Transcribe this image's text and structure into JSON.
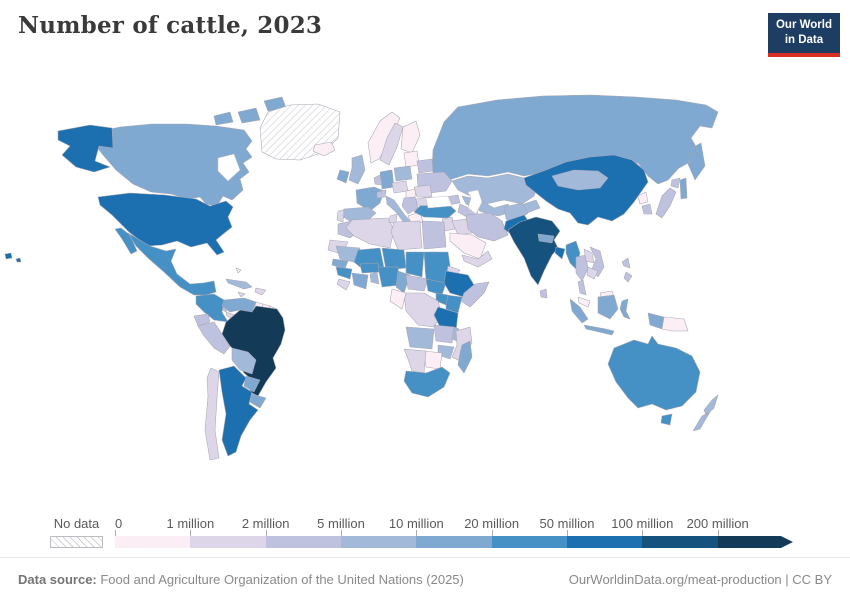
{
  "header": {
    "title": "Number of cattle, 2023",
    "logo": {
      "line1": "Our World",
      "line2": "in Data"
    },
    "logo_bg": "#1d3d63",
    "logo_accent": "#d93025"
  },
  "legend": {
    "no_data_label": "No data"
  },
  "footer": {
    "datasource_label": "Data source:",
    "datasource_text": " Food and Agriculture Organization of the United Nations (2025)",
    "link_text": "OurWorldinData.org/meat-production | CC BY"
  },
  "chart_data": {
    "type": "choropleth",
    "title": "Number of cattle, 2023",
    "year": 2023,
    "unit": "cattle",
    "legend_bins": [
      {
        "label": "0",
        "range": "0–1 million",
        "color": "#fbeff5"
      },
      {
        "label": "1 million",
        "range": "1–2 million",
        "color": "#dcd6e8"
      },
      {
        "label": "2 million",
        "range": "2–5 million",
        "color": "#bfc2df"
      },
      {
        "label": "5 million",
        "range": "5–10 million",
        "color": "#a2b9da"
      },
      {
        "label": "10 million",
        "range": "10–20 million",
        "color": "#7fa9d1"
      },
      {
        "label": "20 million",
        "range": "20–50 million",
        "color": "#4590c4"
      },
      {
        "label": "50 million",
        "range": "50–100 million",
        "color": "#1c70b0"
      },
      {
        "label": "100 million",
        "range": "100–200 million",
        "color": "#15527e"
      },
      {
        "label": "200 million",
        "range": "200 million and over",
        "color": "#133b58"
      }
    ],
    "countries": [
      {
        "name": "Russia",
        "bin": 4
      },
      {
        "name": "Kazakhstan",
        "bin": 3
      },
      {
        "name": "China",
        "bin": 6
      },
      {
        "name": "Mongolia",
        "bin": 3
      },
      {
        "name": "Canada",
        "bin": 4
      },
      {
        "name": "Greenland",
        "bin": null
      },
      {
        "name": "United States",
        "bin": 6
      },
      {
        "name": "Mexico",
        "bin": 5
      },
      {
        "name": "Guatemala",
        "bin": 3
      },
      {
        "name": "Honduras",
        "bin": 2
      },
      {
        "name": "Panama",
        "bin": 1
      },
      {
        "name": "Cuba",
        "bin": 3
      },
      {
        "name": "Dominican Republic",
        "bin": 1
      },
      {
        "name": "Jamaica",
        "bin": 1
      },
      {
        "name": "Bahamas",
        "bin": 0
      },
      {
        "name": "Colombia",
        "bin": 5
      },
      {
        "name": "Venezuela",
        "bin": 4
      },
      {
        "name": "Guyana",
        "bin": 0
      },
      {
        "name": "Suriname",
        "bin": 0
      },
      {
        "name": "French Guiana",
        "bin": 0
      },
      {
        "name": "Ecuador",
        "bin": 2
      },
      {
        "name": "Peru",
        "bin": 2
      },
      {
        "name": "Brazil",
        "bin": 8
      },
      {
        "name": "Bolivia",
        "bin": 3
      },
      {
        "name": "Paraguay",
        "bin": 4
      },
      {
        "name": "Uruguay",
        "bin": 4
      },
      {
        "name": "Chile",
        "bin": 1
      },
      {
        "name": "Argentina",
        "bin": 6
      },
      {
        "name": "Iceland",
        "bin": 0
      },
      {
        "name": "Norway",
        "bin": 0
      },
      {
        "name": "Sweden",
        "bin": 1
      },
      {
        "name": "Finland",
        "bin": 0
      },
      {
        "name": "Denmark",
        "bin": 1
      },
      {
        "name": "Baltic states",
        "bin": 0
      },
      {
        "name": "Belarus",
        "bin": 2
      },
      {
        "name": "Ukraine",
        "bin": 2
      },
      {
        "name": "Poland",
        "bin": 3
      },
      {
        "name": "Germany",
        "bin": 4
      },
      {
        "name": "Netherlands",
        "bin": 2
      },
      {
        "name": "United Kingdom",
        "bin": 3
      },
      {
        "name": "Ireland",
        "bin": 4
      },
      {
        "name": "France",
        "bin": 4
      },
      {
        "name": "Spain",
        "bin": 3
      },
      {
        "name": "Portugal",
        "bin": 1
      },
      {
        "name": "Italy",
        "bin": 3
      },
      {
        "name": "Switzerland",
        "bin": 2
      },
      {
        "name": "Czechia",
        "bin": 1
      },
      {
        "name": "Hungary",
        "bin": 0
      },
      {
        "name": "Romania",
        "bin": 1
      },
      {
        "name": "Bulgaria",
        "bin": 1
      },
      {
        "name": "Serbia",
        "bin": 2
      },
      {
        "name": "Greece",
        "bin": 0
      },
      {
        "name": "Turkey",
        "bin": 5
      },
      {
        "name": "Georgia",
        "bin": 2
      },
      {
        "name": "Syria",
        "bin": 1
      },
      {
        "name": "Iraq",
        "bin": 1
      },
      {
        "name": "Iran",
        "bin": 2
      },
      {
        "name": "Saudi Arabia",
        "bin": 0
      },
      {
        "name": "Yemen",
        "bin": 1
      },
      {
        "name": "Uzbekistan",
        "bin": 3
      },
      {
        "name": "Turkmenistan",
        "bin": 2
      },
      {
        "name": "Kyrgyzstan",
        "bin": 3
      },
      {
        "name": "Afghanistan",
        "bin": 3
      },
      {
        "name": "Pakistan",
        "bin": 6
      },
      {
        "name": "India",
        "bin": 7
      },
      {
        "name": "Nepal",
        "bin": 4
      },
      {
        "name": "Bangladesh",
        "bin": 6
      },
      {
        "name": "Sri Lanka",
        "bin": 2
      },
      {
        "name": "Myanmar",
        "bin": 5
      },
      {
        "name": "Thailand",
        "bin": 2
      },
      {
        "name": "Laos",
        "bin": 1
      },
      {
        "name": "Vietnam",
        "bin": 2
      },
      {
        "name": "Cambodia",
        "bin": 1
      },
      {
        "name": "Malaysia",
        "bin": 0
      },
      {
        "name": "Indonesia",
        "bin": 4
      },
      {
        "name": "Papua New Guinea",
        "bin": 0
      },
      {
        "name": "Philippines",
        "bin": 2
      },
      {
        "name": "North Korea",
        "bin": 0
      },
      {
        "name": "South Korea",
        "bin": 2
      },
      {
        "name": "Japan",
        "bin": 2
      },
      {
        "name": "Australia",
        "bin": 5
      },
      {
        "name": "New Zealand",
        "bin": 3
      },
      {
        "name": "Morocco",
        "bin": 2
      },
      {
        "name": "Algeria",
        "bin": 1
      },
      {
        "name": "Tunisia",
        "bin": 1
      },
      {
        "name": "Libya",
        "bin": 1
      },
      {
        "name": "Egypt",
        "bin": 2
      },
      {
        "name": "Western Sahara",
        "bin": 1
      },
      {
        "name": "Mauritania",
        "bin": 3
      },
      {
        "name": "Mali",
        "bin": 5
      },
      {
        "name": "Niger",
        "bin": 5
      },
      {
        "name": "Chad",
        "bin": 5
      },
      {
        "name": "Sudan",
        "bin": 5
      },
      {
        "name": "Eritrea",
        "bin": 1
      },
      {
        "name": "Senegal",
        "bin": 4
      },
      {
        "name": "Guinea",
        "bin": 5
      },
      {
        "name": "Sierra Leone",
        "bin": 1
      },
      {
        "name": "Ghana",
        "bin": 4
      },
      {
        "name": "Burkina Faso",
        "bin": 5
      },
      {
        "name": "Benin",
        "bin": 3
      },
      {
        "name": "Nigeria",
        "bin": 5
      },
      {
        "name": "Cameroon",
        "bin": 4
      },
      {
        "name": "Central African Republic",
        "bin": 2
      },
      {
        "name": "South Sudan",
        "bin": 5
      },
      {
        "name": "Ethiopia",
        "bin": 6
      },
      {
        "name": "Somalia",
        "bin": 2
      },
      {
        "name": "Kenya",
        "bin": 5
      },
      {
        "name": "Uganda",
        "bin": 5
      },
      {
        "name": "Democratic Republic of Congo",
        "bin": 1
      },
      {
        "name": "Republic of the Congo",
        "bin": 0
      },
      {
        "name": "Tanzania",
        "bin": 6
      },
      {
        "name": "Angola",
        "bin": 3
      },
      {
        "name": "Zambia",
        "bin": 2
      },
      {
        "name": "Malawi",
        "bin": 3
      },
      {
        "name": "Mozambique",
        "bin": 1
      },
      {
        "name": "Zimbabwe",
        "bin": 3
      },
      {
        "name": "Botswana",
        "bin": 0
      },
      {
        "name": "Namibia",
        "bin": 1
      },
      {
        "name": "South Africa",
        "bin": 5
      },
      {
        "name": "Madagascar",
        "bin": 4
      }
    ]
  }
}
